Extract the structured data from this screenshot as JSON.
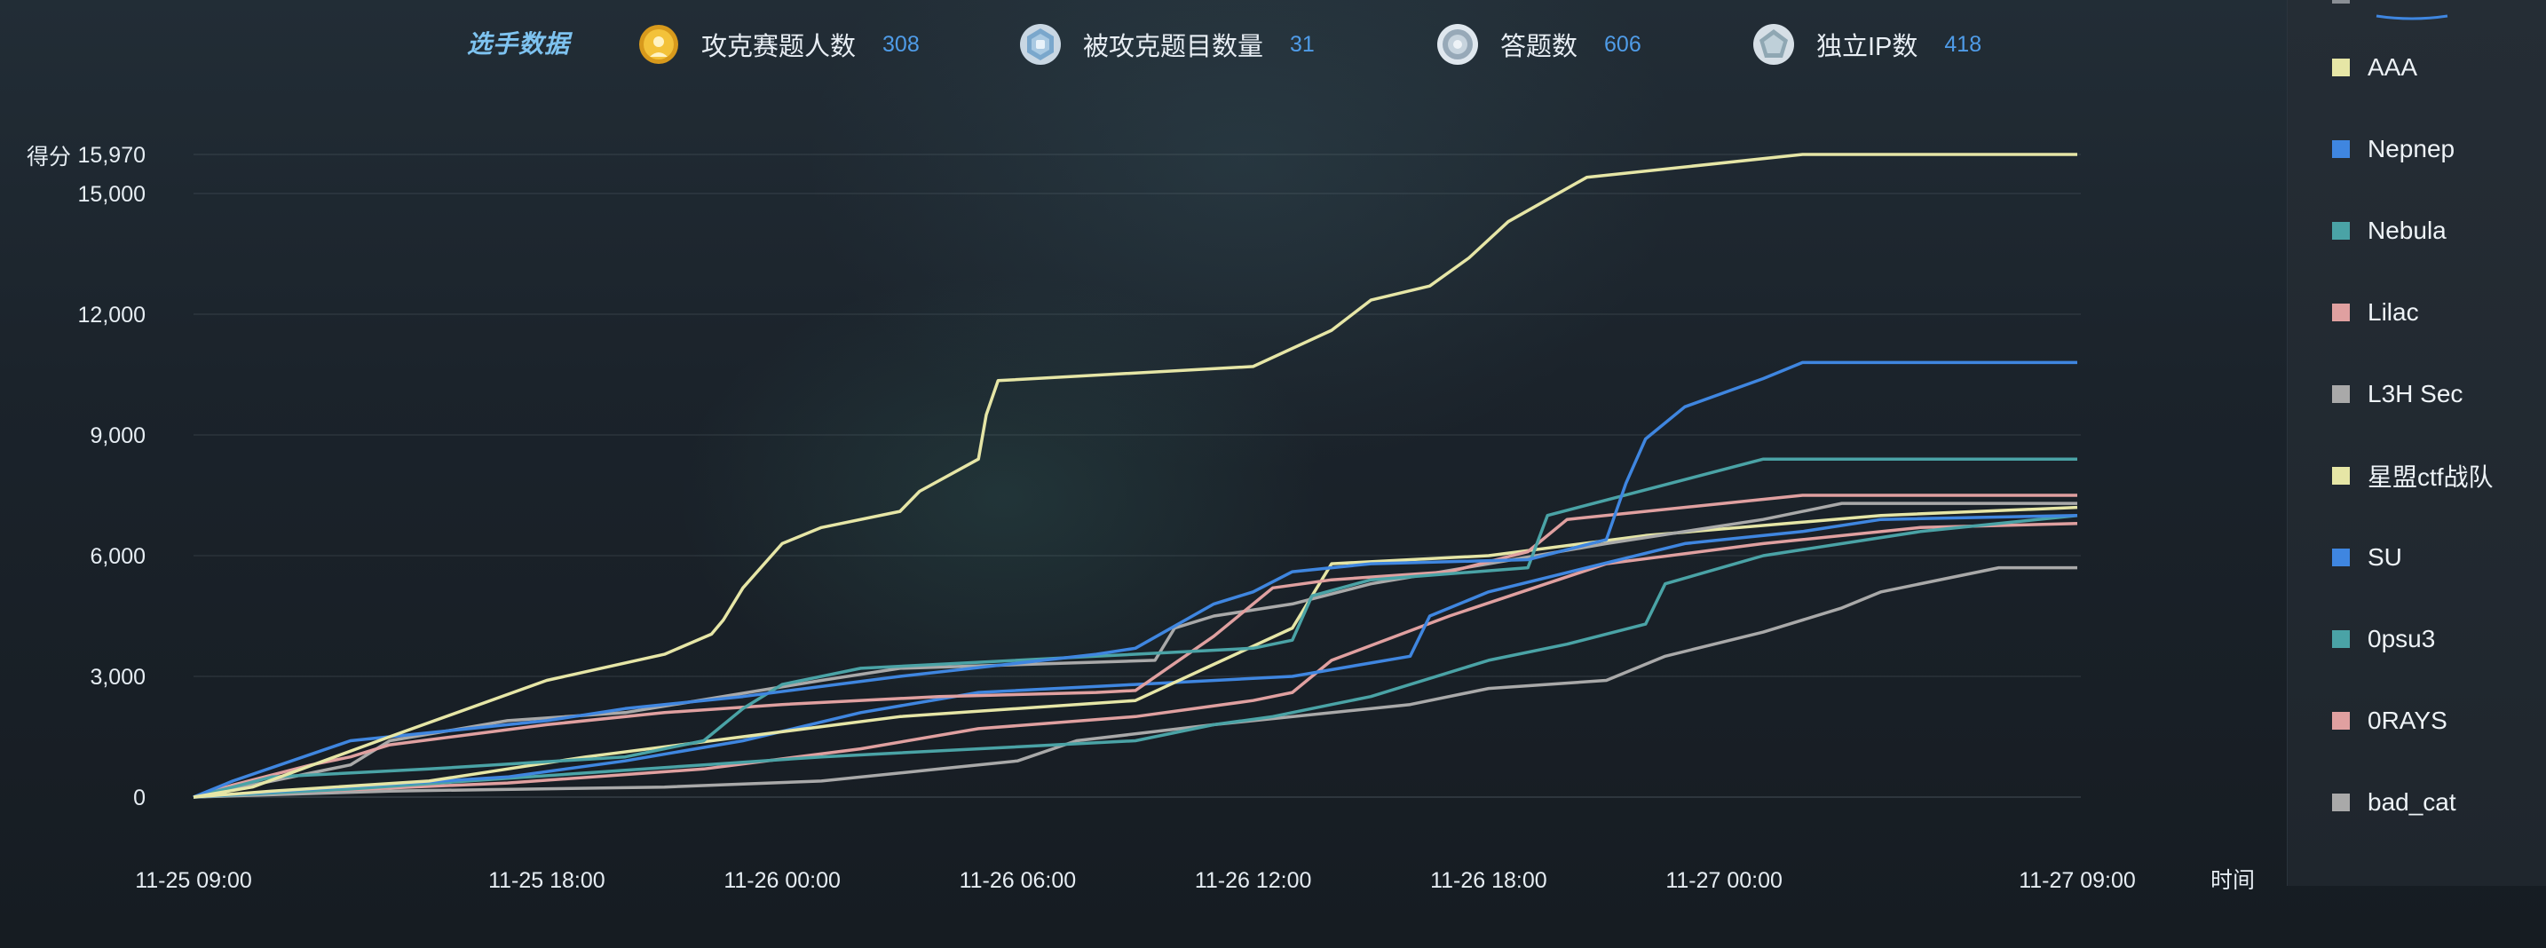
{
  "stats": {
    "title": "选手数据",
    "items": [
      {
        "label": "攻克赛题人数",
        "value": "308",
        "icon": "gold-medal-icon"
      },
      {
        "label": "被攻克题目数量",
        "value": "31",
        "icon": "hexagon-badge-icon"
      },
      {
        "label": "答题数",
        "value": "606",
        "icon": "gear-badge-icon"
      },
      {
        "label": "独立IP数",
        "value": "418",
        "icon": "pentagon-badge-icon"
      }
    ]
  },
  "chart_data": {
    "type": "line",
    "title": "",
    "ylabel": "得分",
    "xlabel": "时间",
    "ylim": [
      0,
      15970
    ],
    "y_ticks": [
      "0",
      "3,000",
      "6,000",
      "9,000",
      "12,000",
      "15,000",
      "15,970"
    ],
    "x_ticks": [
      "11-25 09:00",
      "11-25 18:00",
      "11-26 00:00",
      "11-26 06:00",
      "11-26 12:00",
      "11-26 18:00",
      "11-27 00:00",
      "11-27 09:00"
    ],
    "x_unit": "hours since 11-25 09:00",
    "x_range": [
      0,
      48
    ],
    "grid": true,
    "legend_position": "right",
    "series": [
      {
        "name": "AAA",
        "color": "#e6e6a6",
        "points": [
          [
            0,
            0
          ],
          [
            1.5,
            250
          ],
          [
            5,
            1500
          ],
          [
            9,
            2900
          ],
          [
            12,
            3550
          ],
          [
            13.2,
            4050
          ],
          [
            13.5,
            4400
          ],
          [
            14,
            5200
          ],
          [
            15,
            6300
          ],
          [
            16,
            6700
          ],
          [
            18,
            7100
          ],
          [
            18.5,
            7600
          ],
          [
            20,
            8400
          ],
          [
            20.2,
            9500
          ],
          [
            20.5,
            10350
          ],
          [
            27,
            10700
          ],
          [
            29,
            11600
          ],
          [
            30,
            12350
          ],
          [
            31.5,
            12700
          ],
          [
            32.5,
            13400
          ],
          [
            33.5,
            14300
          ],
          [
            35.5,
            15400
          ],
          [
            41,
            15970
          ],
          [
            48,
            15970
          ]
        ]
      },
      {
        "name": "Nepnep",
        "color": "#3f86e0",
        "points": [
          [
            0,
            0
          ],
          [
            1,
            400
          ],
          [
            4,
            1400
          ],
          [
            9,
            1900
          ],
          [
            11,
            2200
          ],
          [
            14,
            2500
          ],
          [
            18,
            3000
          ],
          [
            23,
            3550
          ],
          [
            24,
            3700
          ],
          [
            26,
            4800
          ],
          [
            27,
            5100
          ],
          [
            28,
            5600
          ],
          [
            30,
            5800
          ],
          [
            34,
            5900
          ],
          [
            36,
            6400
          ],
          [
            36.5,
            7800
          ],
          [
            37,
            8900
          ],
          [
            38,
            9700
          ],
          [
            40,
            10400
          ],
          [
            41,
            10800
          ],
          [
            48,
            10800
          ]
        ]
      },
      {
        "name": "Nebula",
        "color": "#4aa3a6",
        "points": [
          [
            0,
            0
          ],
          [
            2,
            500
          ],
          [
            6,
            700
          ],
          [
            11,
            1000
          ],
          [
            13,
            1400
          ],
          [
            14,
            2200
          ],
          [
            15,
            2800
          ],
          [
            17,
            3200
          ],
          [
            19,
            3300
          ],
          [
            23,
            3500
          ],
          [
            27,
            3700
          ],
          [
            28,
            3900
          ],
          [
            28.5,
            5000
          ],
          [
            30,
            5400
          ],
          [
            34,
            5700
          ],
          [
            34.5,
            7000
          ],
          [
            40,
            8400
          ],
          [
            48,
            8400
          ]
        ]
      },
      {
        "name": "Lilac",
        "color": "#e0a0a0",
        "points": [
          [
            0,
            0
          ],
          [
            1,
            300
          ],
          [
            3,
            800
          ],
          [
            4,
            1000
          ],
          [
            5,
            1300
          ],
          [
            9,
            1800
          ],
          [
            12,
            2100
          ],
          [
            15,
            2300
          ],
          [
            19,
            2500
          ],
          [
            23,
            2600
          ],
          [
            24,
            2650
          ],
          [
            26,
            4000
          ],
          [
            27.5,
            5200
          ],
          [
            29,
            5400
          ],
          [
            32,
            5600
          ],
          [
            34,
            6100
          ],
          [
            35,
            6900
          ],
          [
            41,
            7500
          ],
          [
            48,
            7500
          ]
        ]
      },
      {
        "name": "L3H Sec",
        "color": "#a9a9a9",
        "points": [
          [
            0,
            0
          ],
          [
            2,
            400
          ],
          [
            4,
            800
          ],
          [
            5,
            1400
          ],
          [
            8,
            1900
          ],
          [
            11,
            2100
          ],
          [
            16,
            2900
          ],
          [
            18,
            3200
          ],
          [
            24.5,
            3400
          ],
          [
            25,
            4200
          ],
          [
            26,
            4500
          ],
          [
            28,
            4800
          ],
          [
            30,
            5300
          ],
          [
            33,
            5800
          ],
          [
            36,
            6300
          ],
          [
            40,
            6900
          ],
          [
            42,
            7300
          ],
          [
            48,
            7300
          ]
        ]
      },
      {
        "name": "星盟ctf战队",
        "color": "#e6e6a6",
        "points": [
          [
            0,
            0
          ],
          [
            2,
            150
          ],
          [
            6,
            400
          ],
          [
            10,
            1000
          ],
          [
            14,
            1500
          ],
          [
            18,
            2000
          ],
          [
            24,
            2400
          ],
          [
            26,
            3300
          ],
          [
            28,
            4200
          ],
          [
            29,
            5800
          ],
          [
            33,
            6000
          ],
          [
            37,
            6500
          ],
          [
            43,
            7000
          ],
          [
            48,
            7200
          ]
        ]
      },
      {
        "name": "SU",
        "color": "#3f86e0",
        "points": [
          [
            0,
            0
          ],
          [
            3,
            200
          ],
          [
            8,
            500
          ],
          [
            11,
            900
          ],
          [
            14,
            1400
          ],
          [
            17,
            2100
          ],
          [
            20,
            2600
          ],
          [
            24,
            2800
          ],
          [
            28,
            3000
          ],
          [
            31,
            3500
          ],
          [
            31.5,
            4500
          ],
          [
            33,
            5100
          ],
          [
            38,
            6300
          ],
          [
            41,
            6600
          ],
          [
            43,
            6900
          ],
          [
            48,
            7000
          ]
        ]
      },
      {
        "name": "0psu3",
        "color": "#4aa3a6",
        "points": [
          [
            0,
            0
          ],
          [
            4,
            200
          ],
          [
            10,
            600
          ],
          [
            13,
            800
          ],
          [
            16,
            1000
          ],
          [
            20,
            1200
          ],
          [
            24,
            1400
          ],
          [
            26,
            1800
          ],
          [
            27.5,
            2000
          ],
          [
            29,
            2300
          ],
          [
            30,
            2500
          ],
          [
            33,
            3400
          ],
          [
            35,
            3800
          ],
          [
            37,
            4300
          ],
          [
            37.5,
            5300
          ],
          [
            40,
            6000
          ],
          [
            44,
            6600
          ],
          [
            48,
            7000
          ]
        ]
      },
      {
        "name": "0RAYS",
        "color": "#e0a0a0",
        "points": [
          [
            0,
            0
          ],
          [
            2,
            100
          ],
          [
            8,
            350
          ],
          [
            13,
            700
          ],
          [
            17,
            1200
          ],
          [
            20,
            1700
          ],
          [
            24,
            2000
          ],
          [
            27,
            2400
          ],
          [
            28,
            2600
          ],
          [
            29,
            3400
          ],
          [
            32,
            4500
          ],
          [
            36,
            5800
          ],
          [
            40,
            6300
          ],
          [
            44,
            6700
          ],
          [
            48,
            6800
          ]
        ]
      },
      {
        "name": "bad_cat",
        "color": "#a9a9a9",
        "points": [
          [
            0,
            0
          ],
          [
            5,
            150
          ],
          [
            12,
            250
          ],
          [
            16,
            400
          ],
          [
            19,
            700
          ],
          [
            21,
            900
          ],
          [
            22.5,
            1400
          ],
          [
            26,
            1800
          ],
          [
            31,
            2300
          ],
          [
            33,
            2700
          ],
          [
            36,
            2900
          ],
          [
            37.5,
            3500
          ],
          [
            40,
            4100
          ],
          [
            42,
            4700
          ],
          [
            43,
            5100
          ],
          [
            46,
            5700
          ],
          [
            48,
            5700
          ]
        ]
      }
    ]
  },
  "legend": {
    "items": [
      {
        "label": "AAA",
        "color": "#e6e6a6"
      },
      {
        "label": "Nepnep",
        "color": "#3f86e0"
      },
      {
        "label": "Nebula",
        "color": "#4aa3a6"
      },
      {
        "label": "Lilac",
        "color": "#e0a0a0"
      },
      {
        "label": "L3H Sec",
        "color": "#a9a9a9"
      },
      {
        "label": "星盟ctf战队",
        "color": "#e6e6a6"
      },
      {
        "label": "SU",
        "color": "#3f86e0"
      },
      {
        "label": "0psu3",
        "color": "#4aa3a6"
      },
      {
        "label": "0RAYS",
        "color": "#e0a0a0"
      },
      {
        "label": "bad_cat",
        "color": "#a9a9a9"
      }
    ]
  }
}
